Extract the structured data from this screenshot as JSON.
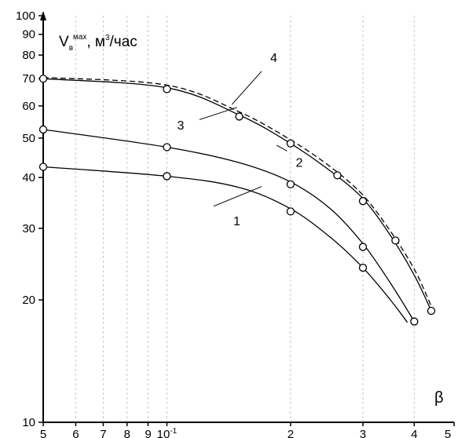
{
  "chart_data": {
    "type": "line",
    "xscale": "log",
    "yscale": "log",
    "xlim": [
      0.05,
      0.5
    ],
    "ylim": [
      10,
      100
    ],
    "grid": "vertical",
    "ylabel": {
      "main": "V",
      "sub": "в",
      "sup": "мах",
      "rest": ", м",
      "sup2": "3",
      "rest2": "/час"
    },
    "xlabel": "β",
    "x_ticks": [
      {
        "value": 0.05,
        "label": "5"
      },
      {
        "value": 0.06,
        "label": "6"
      },
      {
        "value": 0.07,
        "label": "7"
      },
      {
        "value": 0.08,
        "label": "8"
      },
      {
        "value": 0.09,
        "label": "9"
      },
      {
        "value": 0.1,
        "label": "10",
        "sup": "-1"
      },
      {
        "value": 0.2,
        "label": "2"
      },
      {
        "value": 0.3,
        "label": "3"
      },
      {
        "value": 0.4,
        "label": "4"
      },
      {
        "value": 0.5,
        "label": "5"
      }
    ],
    "y_ticks": [
      {
        "value": 10,
        "label": "10"
      },
      {
        "value": 20,
        "label": "20"
      },
      {
        "value": 30,
        "label": "30"
      },
      {
        "value": 40,
        "label": "40"
      },
      {
        "value": 50,
        "label": "50"
      },
      {
        "value": 60,
        "label": "60"
      },
      {
        "value": 70,
        "label": "70"
      },
      {
        "value": 80,
        "label": "80"
      },
      {
        "value": 90,
        "label": "90"
      },
      {
        "value": 100,
        "label": "100"
      }
    ],
    "series": [
      {
        "name": "1",
        "dash": "",
        "curve": [
          [
            0.05,
            42.5
          ],
          [
            0.1,
            40.3
          ],
          [
            0.15,
            37.8
          ],
          [
            0.2,
            33.5
          ],
          [
            0.25,
            28.5
          ],
          [
            0.3,
            24
          ],
          [
            0.35,
            20
          ],
          [
            0.385,
            17.6
          ]
        ],
        "markers": [
          [
            0.05,
            42.5
          ],
          [
            0.1,
            40.3
          ],
          [
            0.2,
            33
          ],
          [
            0.3,
            24
          ]
        ]
      },
      {
        "name": "2",
        "dash": "",
        "curve": [
          [
            0.05,
            52.5
          ],
          [
            0.1,
            47.5
          ],
          [
            0.15,
            43.5
          ],
          [
            0.2,
            39
          ],
          [
            0.25,
            33.5
          ],
          [
            0.3,
            27.5
          ],
          [
            0.35,
            22
          ],
          [
            0.4,
            17.7
          ]
        ],
        "markers": [
          [
            0.05,
            52.5
          ],
          [
            0.1,
            47.5
          ],
          [
            0.2,
            38.5
          ],
          [
            0.3,
            27
          ],
          [
            0.4,
            17.7
          ]
        ]
      },
      {
        "name": "3",
        "dash": "",
        "curve": [
          [
            0.05,
            70
          ],
          [
            0.1,
            66.5
          ],
          [
            0.15,
            57
          ],
          [
            0.2,
            48.5
          ],
          [
            0.25,
            41.5
          ],
          [
            0.3,
            35.5
          ],
          [
            0.35,
            28.8
          ],
          [
            0.4,
            23
          ],
          [
            0.44,
            18.8
          ]
        ],
        "markers": [
          [
            0.05,
            70
          ],
          [
            0.1,
            66
          ],
          [
            0.15,
            56.5
          ],
          [
            0.2,
            48.5
          ],
          [
            0.26,
            40.5
          ],
          [
            0.3,
            35
          ],
          [
            0.36,
            28
          ],
          [
            0.44,
            18.8
          ]
        ]
      },
      {
        "name": "4",
        "dash": "7,4",
        "curve": [
          [
            0.05,
            70.5
          ],
          [
            0.1,
            67.5
          ],
          [
            0.15,
            58
          ],
          [
            0.2,
            49.5
          ],
          [
            0.25,
            42.5
          ],
          [
            0.3,
            36.2
          ],
          [
            0.35,
            29.5
          ],
          [
            0.4,
            23.8
          ],
          [
            0.44,
            19.3
          ]
        ],
        "markers": []
      }
    ],
    "curve_labels": [
      {
        "text": "1",
        "x": 0.148,
        "y": 30.5,
        "lx": 0.17,
        "ly": 38,
        "tx": 0.13,
        "ty": 34
      },
      {
        "text": "2",
        "x": 0.21,
        "y": 42.5,
        "lx": 0.196,
        "ly": 46.5,
        "tx": 0.185,
        "ty": 48
      },
      {
        "text": "3",
        "x": 0.108,
        "y": 52.5,
        "lx": 0.148,
        "ly": 59.5,
        "tx": 0.12,
        "ty": 55.5
      },
      {
        "text": "4",
        "x": 0.182,
        "y": 77,
        "lx": 0.17,
        "ly": 73,
        "tx": 0.144,
        "ty": 60.5
      }
    ]
  }
}
